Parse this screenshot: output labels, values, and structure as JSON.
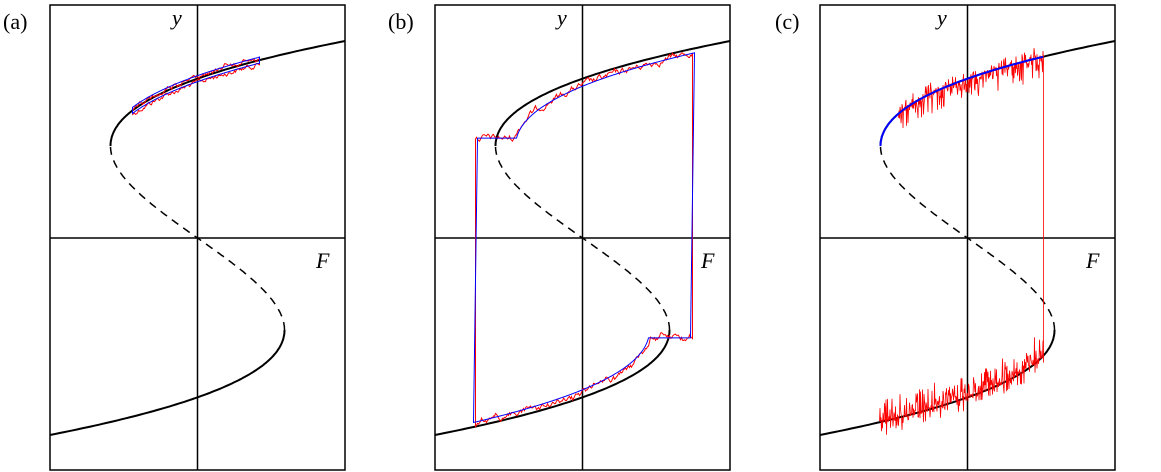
{
  "panels": [
    {
      "label": "(a)",
      "y_label": "y",
      "x_label": "F"
    },
    {
      "label": "(b)",
      "y_label": "y",
      "x_label": "F"
    },
    {
      "label": "(c)",
      "y_label": "y",
      "x_label": "F"
    }
  ]
}
